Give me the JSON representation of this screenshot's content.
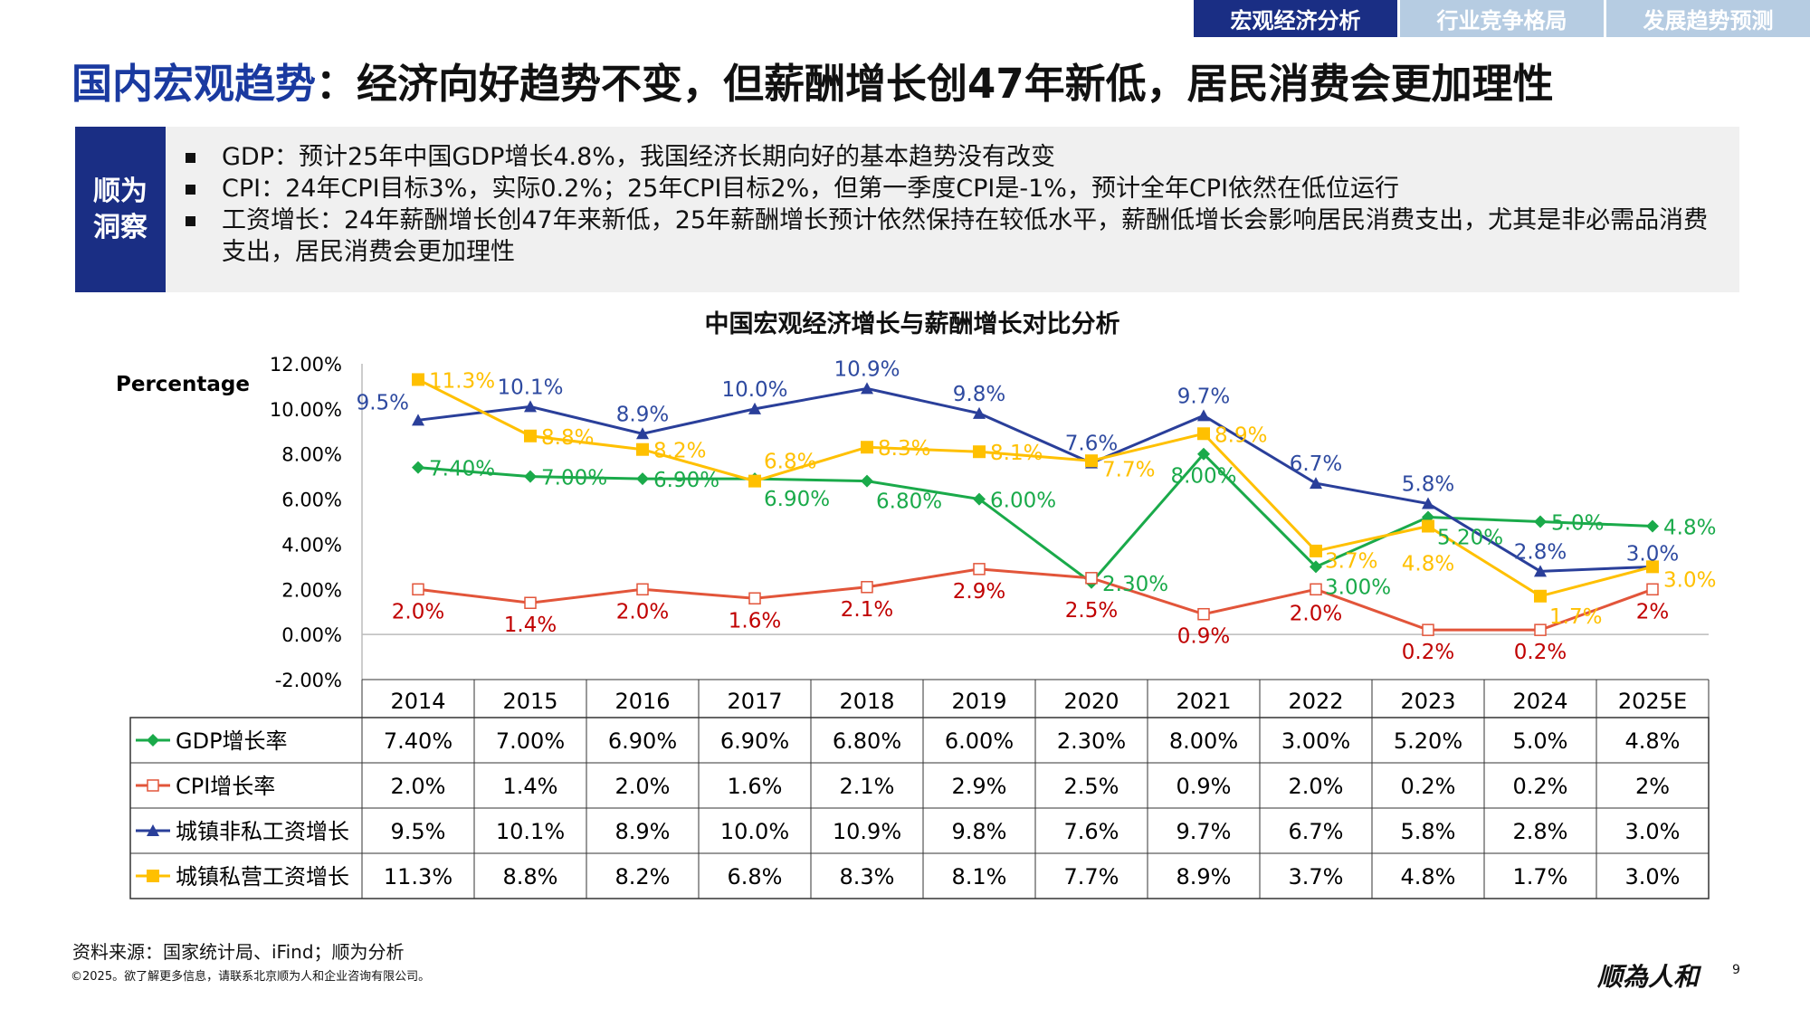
{
  "tabs": [
    {
      "label": "宏观经济分析",
      "active": true
    },
    {
      "label": "行业竞争格局",
      "active": false
    },
    {
      "label": "发展趋势预测",
      "active": false
    }
  ],
  "title": {
    "highlight": "国内宏观趋势",
    "rest": "：经济向好趋势不变，但薪酬增长创47年新低，居民消费会更加理性"
  },
  "insight": {
    "label_line1": "顺为",
    "label_line2": "洞察",
    "bullets": [
      "GDP：预计25年中国GDP增长4.8%，我国经济长期向好的基本趋势没有改变",
      "CPI：24年CPI目标3%，实际0.2%；25年CPI目标2%，但第一季度CPI是-1%，预计全年CPI依然在低位运行",
      "工资增长：24年薪酬增长创47年来新低，25年薪酬增长预计依然保持在较低水平，薪酬低增长会影响居民消费支出，尤其是非必需品消费支出，居民消费会更加理性"
    ]
  },
  "chart_data": {
    "type": "line",
    "title": "中国宏观经济增长与薪酬增长对比分析",
    "ylabel": "Percentage",
    "ylim": [
      -2,
      12
    ],
    "yticks": [
      "12.00%",
      "10.00%",
      "8.00%",
      "6.00%",
      "4.00%",
      "2.00%",
      "0.00%",
      "-2.00%"
    ],
    "categories": [
      "2014",
      "2015",
      "2016",
      "2017",
      "2018",
      "2019",
      "2020",
      "2021",
      "2022",
      "2023",
      "2024",
      "2025E"
    ],
    "series": [
      {
        "name": "GDP增长率",
        "color": "#1aaa4a",
        "label_color": "#1aaa4a",
        "marker": "diamond",
        "values": [
          7.4,
          7.0,
          6.9,
          6.9,
          6.8,
          6.0,
          2.3,
          8.0,
          3.0,
          5.2,
          5.0,
          4.8
        ],
        "labels": [
          "7.40%",
          "7.00%",
          "6.90%",
          "6.90%",
          "6.80%",
          "6.00%",
          "2.30%",
          "8.00%",
          "3.00%",
          "5.20%",
          "5.0%",
          "4.8%"
        ]
      },
      {
        "name": "CPI增长率",
        "color": "#e2553a",
        "label_color": "#c00000",
        "marker": "square-open",
        "values": [
          2.0,
          1.4,
          2.0,
          1.6,
          2.1,
          2.9,
          2.5,
          0.9,
          2.0,
          0.2,
          0.2,
          2.0
        ],
        "labels": [
          "2.0%",
          "1.4%",
          "2.0%",
          "1.6%",
          "2.1%",
          "2.9%",
          "2.5%",
          "0.9%",
          "2.0%",
          "0.2%",
          "0.2%",
          "2%"
        ]
      },
      {
        "name": "城镇非私工资增长",
        "color": "#2a3f9a",
        "label_color": "#2e4aa0",
        "marker": "triangle",
        "values": [
          9.5,
          10.1,
          8.9,
          10.0,
          10.9,
          9.8,
          7.6,
          9.7,
          6.7,
          5.8,
          2.8,
          3.0
        ],
        "labels": [
          "9.5%",
          "10.1%",
          "8.9%",
          "10.0%",
          "10.9%",
          "9.8%",
          "7.6%",
          "9.7%",
          "6.7%",
          "5.8%",
          "2.8%",
          "3.0%"
        ]
      },
      {
        "name": "城镇私营工资增长",
        "color": "#ffc000",
        "label_color": "#ffc000",
        "marker": "square",
        "values": [
          11.3,
          8.8,
          8.2,
          6.8,
          8.3,
          8.1,
          7.7,
          8.9,
          3.7,
          4.8,
          1.7,
          3.0
        ],
        "labels": [
          "11.3%",
          "8.8%",
          "8.2%",
          "6.8%",
          "8.3%",
          "8.1%",
          "7.7%",
          "8.9%",
          "3.7%",
          "4.8%",
          "1.7%",
          "3.0%"
        ]
      }
    ],
    "grid": false,
    "legend": "data-table"
  },
  "footer": {
    "source": "资料来源：国家统计局、iFind；顺为分析",
    "copyright": "©2025。欲了解更多信息，请联系北京顺为人和企业咨询有限公司。",
    "logo": "顺為人和",
    "page": "9"
  }
}
